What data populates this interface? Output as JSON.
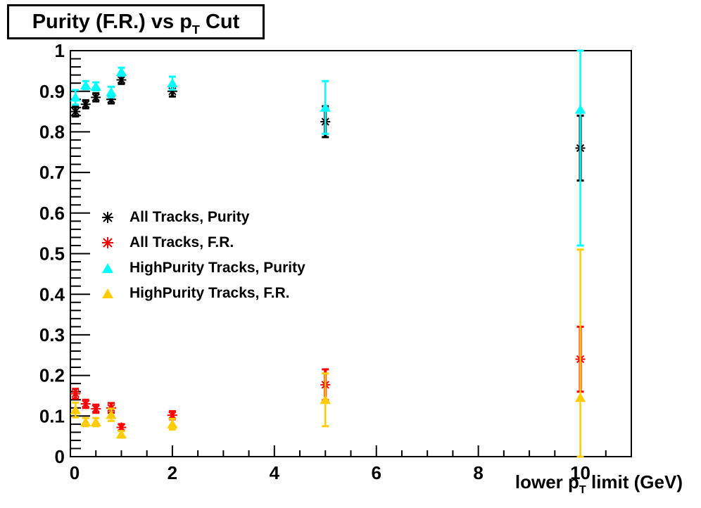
{
  "title": {
    "prefix": "Purity (F.R.) vs p",
    "sub": "T",
    "suffix": " Cut"
  },
  "xaxis_title": {
    "prefix": "lower p",
    "sub": "T",
    "suffix": " limit (GeV)"
  },
  "chart_data": {
    "type": "scatter",
    "title": "Purity (F.R.) vs pT Cut",
    "xlabel": "lower pT limit (GeV)",
    "ylabel": "",
    "xlim": [
      0,
      11
    ],
    "ylim": [
      0,
      1
    ],
    "x_major_step": 2,
    "x_minor_step": 0.5,
    "y_major_step": 0.1,
    "y_minor_step": 0.02,
    "grid": false,
    "legend_position": "middle-left",
    "series": [
      {
        "name": "All Tracks, Purity",
        "marker": "asterisk",
        "color": "#000000",
        "points": [
          {
            "x": 0.1,
            "y": 0.85,
            "elo": 0.012,
            "ehi": 0.012
          },
          {
            "x": 0.3,
            "y": 0.868,
            "elo": 0.01,
            "ehi": 0.01
          },
          {
            "x": 0.5,
            "y": 0.885,
            "elo": 0.01,
            "ehi": 0.01
          },
          {
            "x": 0.8,
            "y": 0.88,
            "elo": 0.01,
            "ehi": 0.01
          },
          {
            "x": 1.0,
            "y": 0.928,
            "elo": 0.01,
            "ehi": 0.01
          },
          {
            "x": 2.0,
            "y": 0.9,
            "elo": 0.013,
            "ehi": 0.013
          },
          {
            "x": 5.0,
            "y": 0.825,
            "elo": 0.038,
            "ehi": 0.038
          },
          {
            "x": 10.0,
            "y": 0.76,
            "elo": 0.08,
            "ehi": 0.08
          }
        ]
      },
      {
        "name": "All Tracks, F.R.",
        "marker": "asterisk",
        "color": "#ff0000",
        "points": [
          {
            "x": 0.1,
            "y": 0.155,
            "elo": 0.012,
            "ehi": 0.012
          },
          {
            "x": 0.3,
            "y": 0.13,
            "elo": 0.01,
            "ehi": 0.01
          },
          {
            "x": 0.5,
            "y": 0.118,
            "elo": 0.01,
            "ehi": 0.01
          },
          {
            "x": 0.8,
            "y": 0.12,
            "elo": 0.012,
            "ehi": 0.012
          },
          {
            "x": 1.0,
            "y": 0.072,
            "elo": 0.008,
            "ehi": 0.008
          },
          {
            "x": 2.0,
            "y": 0.102,
            "elo": 0.01,
            "ehi": 0.01
          },
          {
            "x": 5.0,
            "y": 0.177,
            "elo": 0.038,
            "ehi": 0.038
          },
          {
            "x": 10.0,
            "y": 0.24,
            "elo": 0.08,
            "ehi": 0.08
          }
        ]
      },
      {
        "name": "HighPurity Tracks, Purity",
        "marker": "triangle",
        "color": "#00ffff",
        "points": [
          {
            "x": 0.1,
            "y": 0.885,
            "elo": 0.018,
            "ehi": 0.018
          },
          {
            "x": 0.3,
            "y": 0.915,
            "elo": 0.01,
            "ehi": 0.01
          },
          {
            "x": 0.5,
            "y": 0.912,
            "elo": 0.01,
            "ehi": 0.01
          },
          {
            "x": 0.8,
            "y": 0.898,
            "elo": 0.013,
            "ehi": 0.013
          },
          {
            "x": 1.0,
            "y": 0.948,
            "elo": 0.01,
            "ehi": 0.01
          },
          {
            "x": 2.0,
            "y": 0.92,
            "elo": 0.016,
            "ehi": 0.016
          },
          {
            "x": 5.0,
            "y": 0.86,
            "elo": 0.065,
            "ehi": 0.065
          },
          {
            "x": 10.0,
            "y": 0.855,
            "elo": 0.335,
            "ehi": 0.145
          }
        ]
      },
      {
        "name": "HighPurity Tracks, F.R.",
        "marker": "triangle",
        "color": "#ffcc00",
        "points": [
          {
            "x": 0.1,
            "y": 0.115,
            "elo": 0.018,
            "ehi": 0.018
          },
          {
            "x": 0.3,
            "y": 0.085,
            "elo": 0.01,
            "ehi": 0.01
          },
          {
            "x": 0.5,
            "y": 0.085,
            "elo": 0.01,
            "ehi": 0.01
          },
          {
            "x": 0.8,
            "y": 0.103,
            "elo": 0.015,
            "ehi": 0.015
          },
          {
            "x": 1.0,
            "y": 0.055,
            "elo": 0.008,
            "ehi": 0.008
          },
          {
            "x": 2.0,
            "y": 0.08,
            "elo": 0.013,
            "ehi": 0.013
          },
          {
            "x": 5.0,
            "y": 0.14,
            "elo": 0.065,
            "ehi": 0.065
          },
          {
            "x": 10.0,
            "y": 0.145,
            "elo": 0.145,
            "ehi": 0.365
          }
        ]
      }
    ]
  }
}
